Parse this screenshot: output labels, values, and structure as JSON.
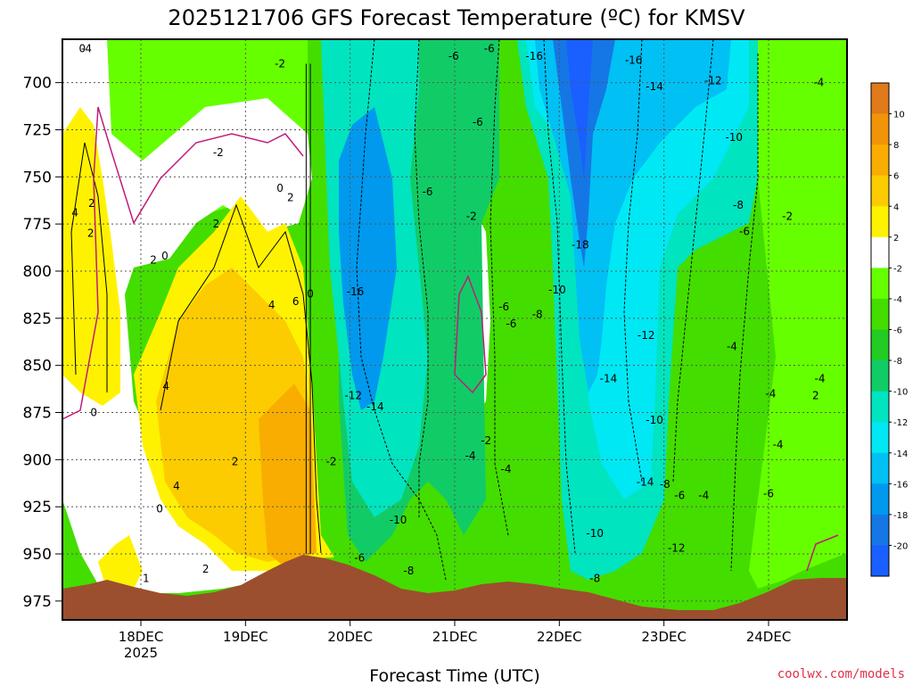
{
  "chart_data": {
    "type": "heatmap",
    "title": "2025121706 GFS Forecast Temperature (ºC) for KMSV",
    "xlabel": "Forecast Time (UTC)",
    "ylabel": "",
    "x_ticks": [
      {
        "label": "18DEC",
        "sub": "2025",
        "day": 18
      },
      {
        "label": "19DEC",
        "sub": "",
        "day": 19
      },
      {
        "label": "20DEC",
        "sub": "",
        "day": 20
      },
      {
        "label": "21DEC",
        "sub": "",
        "day": 21
      },
      {
        "label": "22DEC",
        "sub": "",
        "day": 22
      },
      {
        "label": "23DEC",
        "sub": "",
        "day": 23
      },
      {
        "label": "24DEC",
        "sub": "",
        "day": 24
      }
    ],
    "xlim_days": [
      17.25,
      24.75
    ],
    "y_ticks": [
      700,
      725,
      750,
      775,
      800,
      825,
      850,
      875,
      900,
      925,
      950,
      975
    ],
    "ylim_hpa": [
      677,
      985
    ],
    "y_inverted": true,
    "grid": true,
    "colorbar": {
      "levels": [
        10,
        8,
        6,
        4,
        2,
        -2,
        -4,
        -6,
        -8,
        -10,
        -12,
        -14,
        -16,
        -18,
        -20
      ],
      "colors": [
        "#e07a1a",
        "#f0940a",
        "#f9ad00",
        "#fccc00",
        "#fff200",
        "#ffffff",
        "#66ff00",
        "#44dd00",
        "#22cc22",
        "#11cc66",
        "#00e4c0",
        "#00e8f4",
        "#00c0f4",
        "#0099ee",
        "#1577e5",
        "#1a5fff"
      ]
    },
    "ground_color": "#9c4f2e",
    "contour_labels": [
      {
        "t": "0",
        "day": 17.44,
        "p": 682
      },
      {
        "t": "-4",
        "day": 17.48,
        "p": 682
      },
      {
        "t": "-2",
        "day": 18.74,
        "p": 737
      },
      {
        "t": "-2",
        "day": 19.33,
        "p": 690
      },
      {
        "t": "4",
        "day": 17.37,
        "p": 769
      },
      {
        "t": "2",
        "day": 17.53,
        "p": 764
      },
      {
        "t": "2",
        "day": 17.52,
        "p": 780
      },
      {
        "t": "2",
        "day": 18.12,
        "p": 794
      },
      {
        "t": "0",
        "day": 18.23,
        "p": 792
      },
      {
        "t": "2",
        "day": 18.72,
        "p": 775
      },
      {
        "t": "0",
        "day": 19.33,
        "p": 756
      },
      {
        "t": "2",
        "day": 19.43,
        "p": 761
      },
      {
        "t": "0",
        "day": 19.62,
        "p": 812
      },
      {
        "t": "6",
        "day": 19.48,
        "p": 816
      },
      {
        "t": "4",
        "day": 19.25,
        "p": 818
      },
      {
        "t": "4",
        "day": 18.24,
        "p": 861
      },
      {
        "t": "0",
        "day": 17.55,
        "p": 875
      },
      {
        "t": "2",
        "day": 18.9,
        "p": 901
      },
      {
        "t": "4",
        "day": 18.34,
        "p": 914
      },
      {
        "t": "0",
        "day": 18.18,
        "p": 926
      },
      {
        "t": "2",
        "day": 18.62,
        "p": 958
      },
      {
        "t": "1",
        "day": 18.05,
        "p": 963
      },
      {
        "t": "-6",
        "day": 20.99,
        "p": 686
      },
      {
        "t": "-6",
        "day": 21.33,
        "p": 682
      },
      {
        "t": "-16",
        "day": 21.76,
        "p": 686
      },
      {
        "t": "-16",
        "day": 22.71,
        "p": 688
      },
      {
        "t": "-14",
        "day": 22.91,
        "p": 702
      },
      {
        "t": "-12",
        "day": 23.47,
        "p": 699
      },
      {
        "t": "-10",
        "day": 23.67,
        "p": 729
      },
      {
        "t": "-4",
        "day": 24.48,
        "p": 700
      },
      {
        "t": "-6",
        "day": 20.74,
        "p": 758
      },
      {
        "t": "-2",
        "day": 21.16,
        "p": 771
      },
      {
        "t": "-18",
        "day": 22.2,
        "p": 786
      },
      {
        "t": "-8",
        "day": 23.71,
        "p": 765
      },
      {
        "t": "-6",
        "day": 23.77,
        "p": 779
      },
      {
        "t": "-2",
        "day": 24.18,
        "p": 771
      },
      {
        "t": "-16",
        "day": 20.05,
        "p": 811
      },
      {
        "t": "-6",
        "day": 21.47,
        "p": 819
      },
      {
        "t": "-6",
        "day": 21.54,
        "p": 828
      },
      {
        "t": "-8",
        "day": 21.79,
        "p": 823
      },
      {
        "t": "-10",
        "day": 21.98,
        "p": 810
      },
      {
        "t": "-12",
        "day": 22.83,
        "p": 834
      },
      {
        "t": "-4",
        "day": 23.65,
        "p": 840
      },
      {
        "t": "-14",
        "day": 22.47,
        "p": 857
      },
      {
        "t": "-12",
        "day": 20.03,
        "p": 866
      },
      {
        "t": "-14",
        "day": 20.24,
        "p": 872
      },
      {
        "t": "-4",
        "day": 24.49,
        "p": 857
      },
      {
        "t": "-4",
        "day": 24.02,
        "p": 865
      },
      {
        "t": "2",
        "day": 24.45,
        "p": 866
      },
      {
        "t": "-2",
        "day": 21.3,
        "p": 890
      },
      {
        "t": "-4",
        "day": 21.15,
        "p": 898
      },
      {
        "t": "-10",
        "day": 22.91,
        "p": 879
      },
      {
        "t": "-4",
        "day": 24.09,
        "p": 892
      },
      {
        "t": "-4",
        "day": 21.49,
        "p": 905
      },
      {
        "t": "-14",
        "day": 22.82,
        "p": 912
      },
      {
        "t": "-8",
        "day": 23.01,
        "p": 913
      },
      {
        "t": "-6",
        "day": 23.15,
        "p": 919
      },
      {
        "t": "-4",
        "day": 23.38,
        "p": 919
      },
      {
        "t": "-6",
        "day": 24.0,
        "p": 918
      },
      {
        "t": "-10",
        "day": 20.46,
        "p": 932
      },
      {
        "t": "-10",
        "day": 22.34,
        "p": 939
      },
      {
        "t": "-12",
        "day": 23.12,
        "p": 947
      },
      {
        "t": "-6",
        "day": 20.09,
        "p": 952
      },
      {
        "t": "-8",
        "day": 20.56,
        "p": 959
      },
      {
        "t": "-8",
        "day": 22.34,
        "p": 963
      },
      {
        "t": "-2",
        "day": 19.82,
        "p": 901
      },
      {
        "t": "-6",
        "day": 21.22,
        "p": 721
      }
    ],
    "vertical_lines_day": [
      19.58,
      19.62
    ]
  },
  "watermark": "coolwx.com/models"
}
